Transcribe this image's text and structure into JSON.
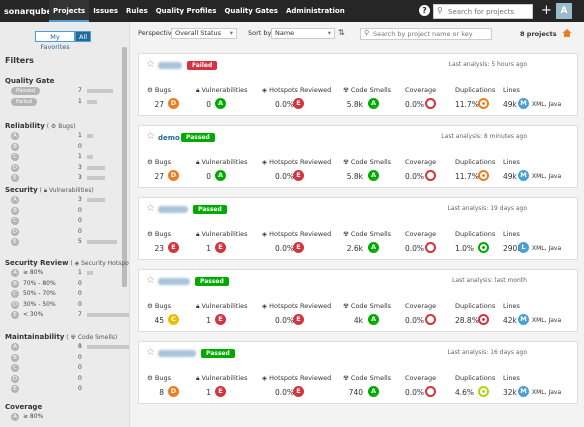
{
  "topbar": {
    "logo": "sonarqube",
    "nav": [
      "Projects",
      "Issues",
      "Rules",
      "Quality Profiles",
      "Quality Gates",
      "Administration"
    ],
    "help": "?",
    "search_placeholder": "Search for projects",
    "plus": "+",
    "avatar": "A"
  },
  "sidebar": {
    "my_favorites": "My Favorites",
    "all": "All",
    "filters_title": "Filters",
    "quality_gate": {
      "title": "Quality Gate",
      "items": [
        {
          "label": "Passed",
          "count": "7"
        },
        {
          "label": "Failed",
          "count": "1"
        }
      ]
    },
    "reliability": {
      "title": "Reliability",
      "sub": "Bugs",
      "items": [
        {
          "label": "A",
          "count": "1"
        },
        {
          "label": "B",
          "count": "0"
        },
        {
          "label": "C",
          "count": "1"
        },
        {
          "label": "D",
          "count": "3"
        },
        {
          "label": "E",
          "count": "3"
        }
      ]
    },
    "security": {
      "title": "Security",
      "sub": "Vulnerabilities",
      "items": [
        {
          "label": "A",
          "count": "3"
        },
        {
          "label": "B",
          "count": "0"
        },
        {
          "label": "C",
          "count": "0"
        },
        {
          "label": "D",
          "count": "0"
        },
        {
          "label": "E",
          "count": "5"
        }
      ]
    },
    "security_review": {
      "title": "Security Review",
      "sub": "Security Hotspots",
      "items": [
        {
          "label": "A",
          "text": "≥ 80%",
          "count": "1"
        },
        {
          "label": "B",
          "text": "70% - 80%",
          "count": "0"
        },
        {
          "label": "C",
          "text": "50% - 70%",
          "count": "0"
        },
        {
          "label": "D",
          "text": "30% - 50%",
          "count": "0"
        },
        {
          "label": "E",
          "text": "< 30%",
          "count": "7"
        }
      ]
    },
    "maintainability": {
      "title": "Maintainability",
      "sub": "Code Smells",
      "items": [
        {
          "label": "A",
          "count": "8"
        },
        {
          "label": "B",
          "count": "0"
        },
        {
          "label": "C",
          "count": "0"
        },
        {
          "label": "D",
          "count": "0"
        },
        {
          "label": "E",
          "count": "0"
        }
      ]
    },
    "coverage": {
      "title": "Coverage",
      "items": [
        {
          "label": "A",
          "text": "≥ 80%"
        }
      ]
    }
  },
  "toolbar": {
    "perspective_label": "Perspective:",
    "perspective_value": "Overall Status",
    "sortby_label": "Sort by",
    "sortby_value": "Name",
    "search_placeholder": "Search by project name or key",
    "project_count": "8 projects"
  },
  "metric_labels": {
    "bugs": "Bugs",
    "vulnerabilities": "Vulnerabilities",
    "hotspots": "Hotspots Reviewed",
    "smells": "Code Smells",
    "coverage": "Coverage",
    "duplications": "Duplications",
    "lines": "Lines"
  },
  "projects": [
    {
      "name": "",
      "gate": "Failed",
      "last_analysis": "Last analysis: 5 hours ago",
      "bugs": "27",
      "bugs_rating": "D",
      "vulns": "0",
      "vulns_rating": "A",
      "hotspots": "0.0%",
      "hotspots_rating": "E",
      "smells": "5.8k",
      "smells_rating": "A",
      "coverage": "0.0%",
      "dup": "11.7%",
      "lines": "49k",
      "lang_size": "M",
      "langs": "XML, Java"
    },
    {
      "name": "demo",
      "gate": "Passed",
      "last_analysis": "Last analysis: 8 minutes ago",
      "bugs": "27",
      "bugs_rating": "D",
      "vulns": "0",
      "vulns_rating": "A",
      "hotspots": "0.0%",
      "hotspots_rating": "E",
      "smells": "5.8k",
      "smells_rating": "A",
      "coverage": "0.0%",
      "dup": "11.7%",
      "lines": "49k",
      "lang_size": "M",
      "langs": "XML, Java"
    },
    {
      "name": "",
      "gate": "Passed",
      "last_analysis": "Last analysis: 19 days ago",
      "bugs": "23",
      "bugs_rating": "E",
      "vulns": "1",
      "vulns_rating": "E",
      "hotspots": "0.0%",
      "hotspots_rating": "E",
      "smells": "2.6k",
      "smells_rating": "A",
      "coverage": "0.0%",
      "dup": "1.0%",
      "lines": "290k",
      "lang_size": "L",
      "langs": "XML, Java"
    },
    {
      "name": "",
      "gate": "Passed",
      "last_analysis": "Last analysis: last month",
      "bugs": "45",
      "bugs_rating": "C",
      "vulns": "1",
      "vulns_rating": "E",
      "hotspots": "0.0%",
      "hotspots_rating": "E",
      "smells": "4k",
      "smells_rating": "A",
      "coverage": "0.0%",
      "dup": "28.8%",
      "lines": "42k",
      "lang_size": "M",
      "langs": "XML, Java"
    },
    {
      "name": "",
      "gate": "Passed",
      "last_analysis": "Last analysis: 16 days ago",
      "bugs": "8",
      "bugs_rating": "D",
      "vulns": "1",
      "vulns_rating": "E",
      "hotspots": "0.0%",
      "hotspots_rating": "E",
      "smells": "740",
      "smells_rating": "A",
      "coverage": "0.0%",
      "dup": "4.6%",
      "lines": "32k",
      "lang_size": "M",
      "langs": "XML, Java"
    }
  ],
  "colors": {
    "rating_A": "#00aa00",
    "rating_B": "#b0d513",
    "rating_C": "#eabe06",
    "rating_D": "#ed7d20",
    "rating_E": "#d4333f",
    "passed": "#00aa00",
    "failed": "#d4333f",
    "accent": "#236a97"
  }
}
